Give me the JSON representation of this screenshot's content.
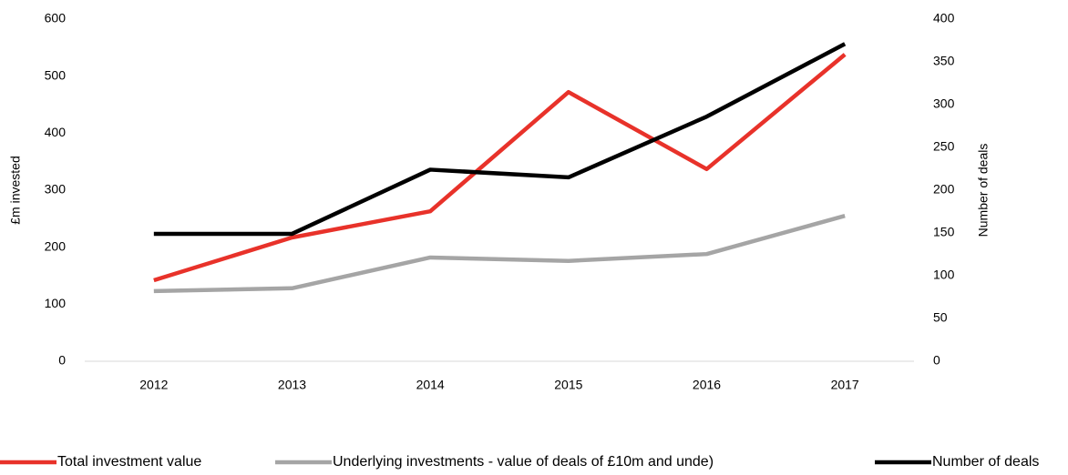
{
  "chart_data": {
    "type": "line",
    "categories": [
      "2012",
      "2013",
      "2014",
      "2015",
      "2016",
      "2017"
    ],
    "ylabel": "£m invested",
    "y2label": "Number of deals",
    "ylim": [
      0,
      600
    ],
    "yticks": [
      0,
      100,
      200,
      300,
      400,
      500,
      600
    ],
    "y2lim": [
      0,
      400
    ],
    "y2ticks": [
      0,
      50,
      100,
      150,
      200,
      250,
      300,
      350,
      400
    ],
    "grid": false,
    "legend": "bottom",
    "series": [
      {
        "name": "Total investment value",
        "color": "#e8322a",
        "values": [
          142,
          217,
          263,
          472,
          337,
          538
        ]
      },
      {
        "name": "Underlying investments - value of deals of £10m and unde)",
        "color": "#a5a5a5",
        "values": [
          123,
          128,
          182,
          176,
          188,
          255
        ]
      },
      {
        "name": "Number of deals",
        "color": "#000000",
        "axis": "y2",
        "values": [
          149,
          149,
          224,
          215,
          286,
          371
        ]
      }
    ]
  }
}
